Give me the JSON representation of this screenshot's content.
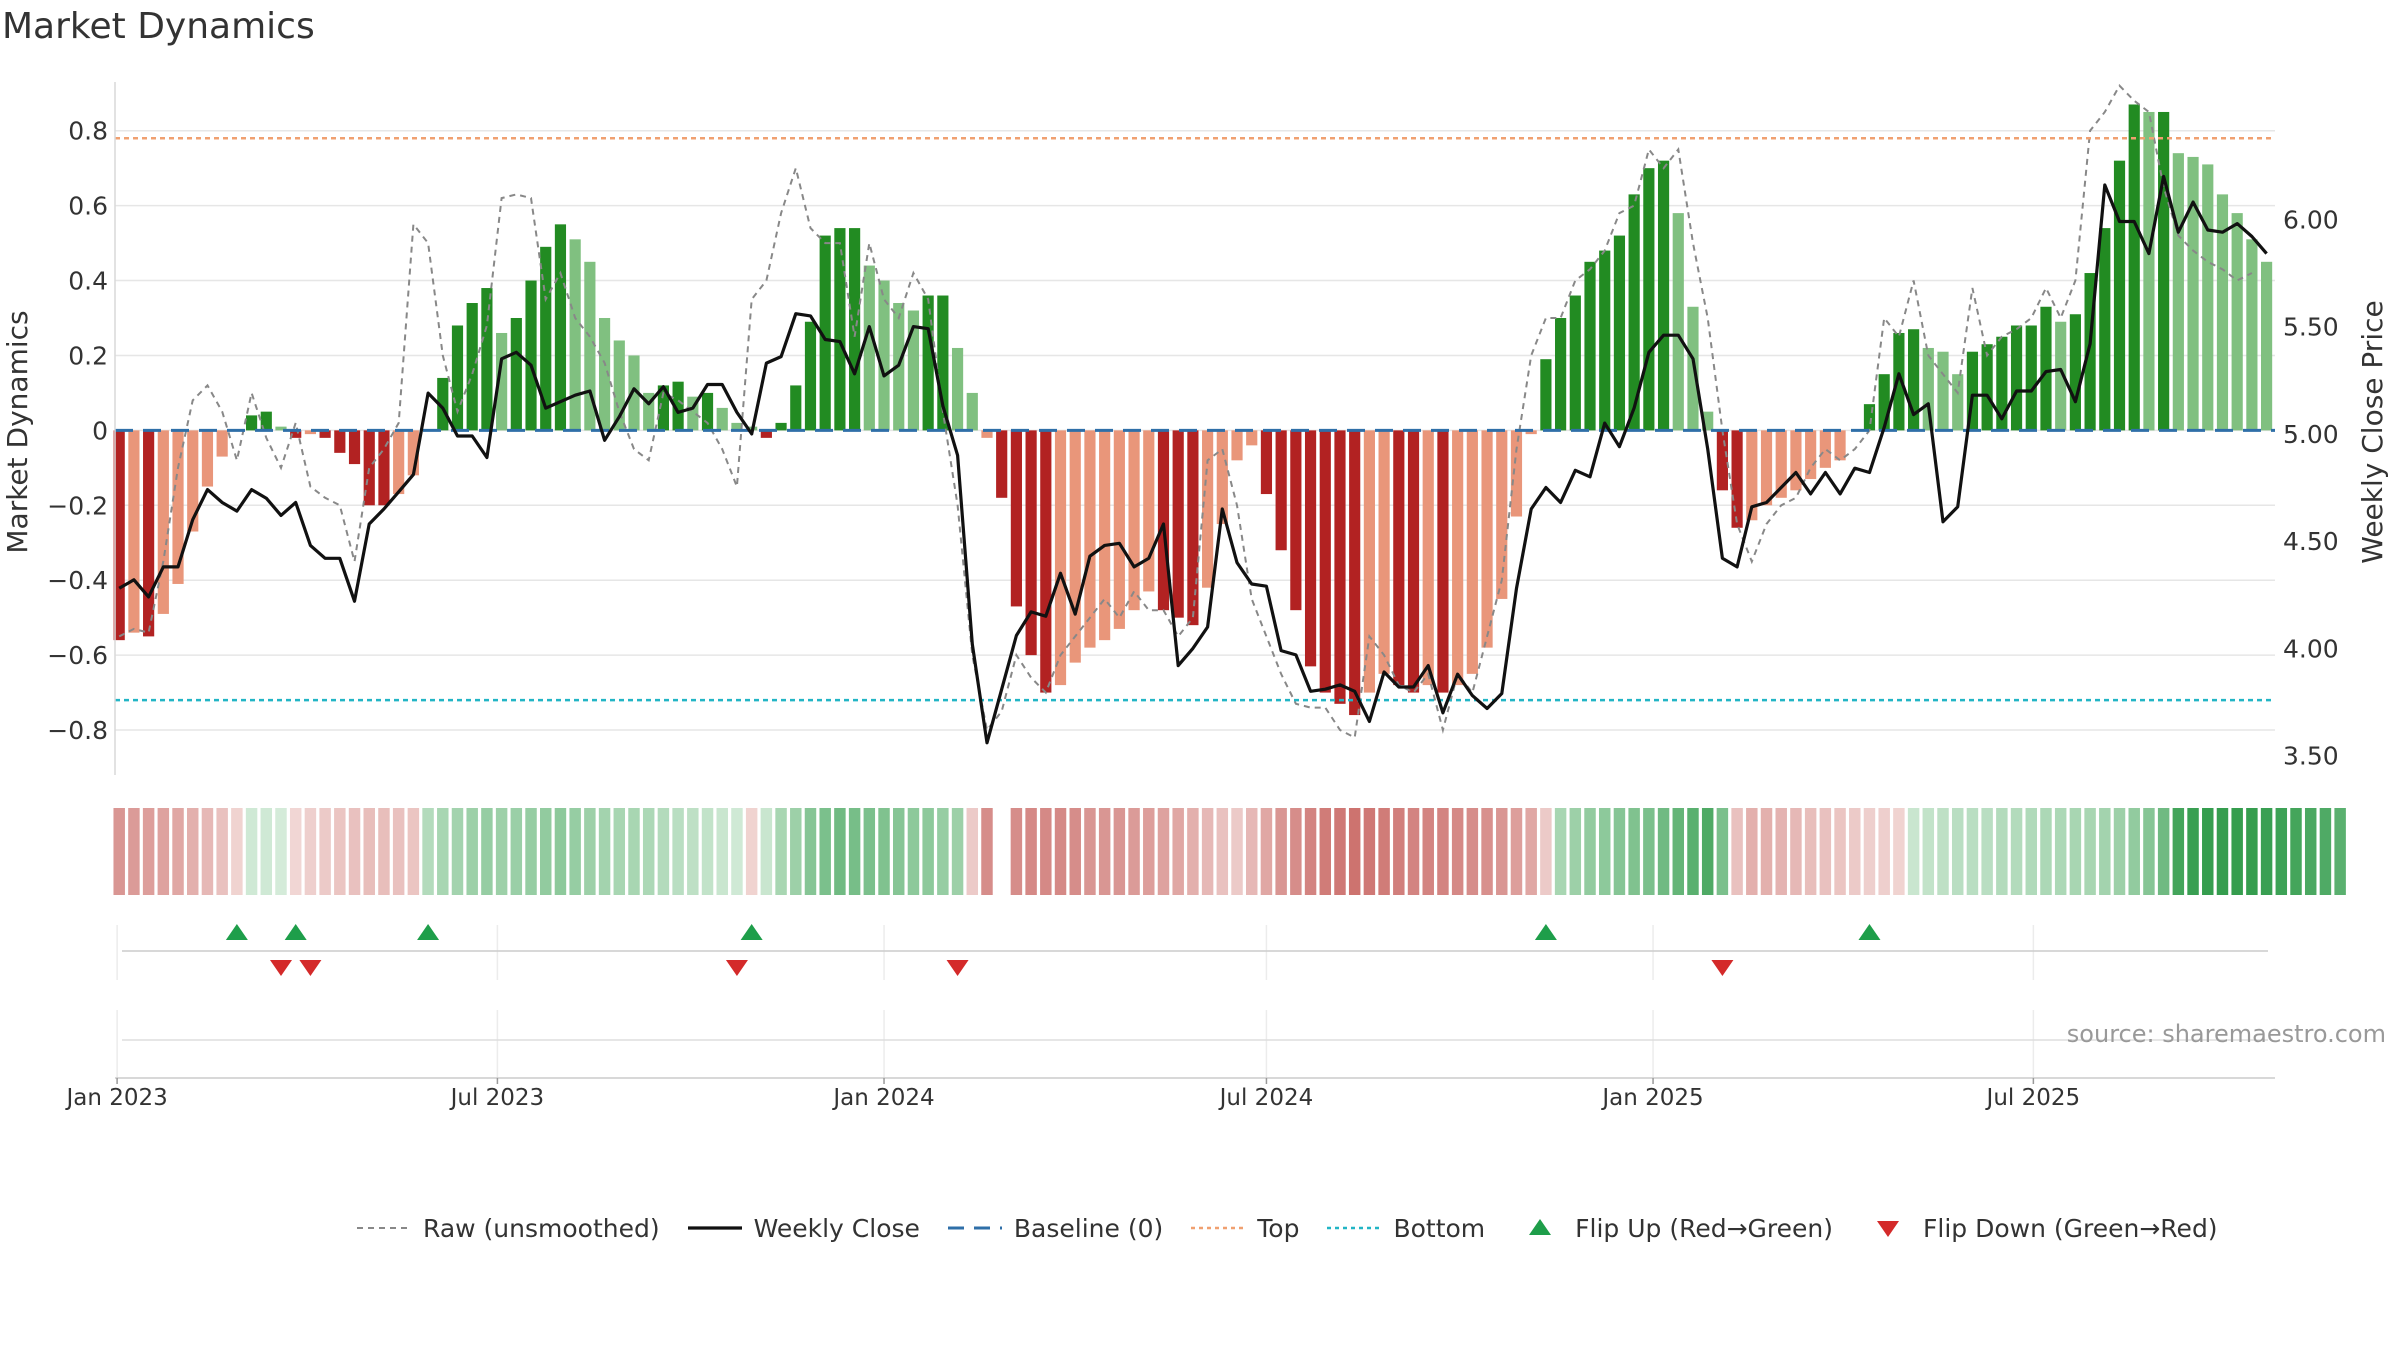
{
  "title": "Market Dynamics",
  "source_note": "source: sharemaestro.com",
  "legend": [
    {
      "key": "raw",
      "label": "Raw (unsmoothed)",
      "color": "#888888",
      "style": "dashed-line"
    },
    {
      "key": "close",
      "label": "Weekly Close",
      "color": "#111111",
      "style": "solid-line"
    },
    {
      "key": "baseline",
      "label": "Baseline (0)",
      "color": "#2f6fa8",
      "style": "long-dash-line"
    },
    {
      "key": "top",
      "label": "Top",
      "color": "#f0a070",
      "style": "dotted-line"
    },
    {
      "key": "bottom",
      "label": "Bottom",
      "color": "#22b5c5",
      "style": "dotted-line"
    },
    {
      "key": "flip_up",
      "label": "Flip Up (Red→Green)",
      "color": "#1e9e4a",
      "style": "triangle-up"
    },
    {
      "key": "flip_down",
      "label": "Flip Down (Green→Red)",
      "color": "#d42a2a",
      "style": "triangle-down"
    }
  ],
  "chart_data": {
    "type": "bar",
    "x_start_date": "2023-01-02",
    "x_step_days": 7,
    "x_tick_labels": [
      "Jan 2023",
      "Jul 2023",
      "Jan 2024",
      "Jul 2024",
      "Jan 2025",
      "Jul 2025"
    ],
    "x_tick_dates": [
      "2023-01-01",
      "2023-07-01",
      "2024-01-01",
      "2024-07-01",
      "2025-01-01",
      "2025-07-01"
    ],
    "ylabel": "Market Dynamics",
    "ylim": [
      -0.92,
      0.93
    ],
    "y_ticks": [
      -0.8,
      -0.6,
      -0.4,
      -0.2,
      0,
      0.2,
      0.4,
      0.6,
      0.8
    ],
    "y2label": "Weekly Close Price",
    "y2lim": [
      3.41,
      6.64
    ],
    "y2_ticks": [
      3.5,
      4.0,
      4.5,
      5.0,
      5.5,
      6.0
    ],
    "top_line": 0.78,
    "bottom_line": -0.72,
    "baseline": 0,
    "grid": true,
    "legend_position": "bottom",
    "colors": {
      "strong_green": "#228b22",
      "weak_green": "#80c080",
      "strong_red": "#b22222",
      "weak_red": "#e9967a"
    },
    "dynamics": [
      -0.56,
      -0.54,
      -0.55,
      -0.49,
      -0.41,
      -0.27,
      -0.15,
      -0.07,
      0.0,
      0.04,
      0.05,
      0.01,
      -0.02,
      -0.01,
      -0.02,
      -0.06,
      -0.09,
      -0.2,
      -0.2,
      -0.17,
      -0.12,
      0.0,
      0.14,
      0.28,
      0.34,
      0.38,
      0.26,
      0.3,
      0.4,
      0.49,
      0.55,
      0.51,
      0.45,
      0.3,
      0.24,
      0.2,
      0.1,
      0.12,
      0.13,
      0.09,
      0.1,
      0.06,
      0.02,
      0.01,
      -0.02,
      0.02,
      0.12,
      0.29,
      0.52,
      0.54,
      0.54,
      0.44,
      0.4,
      0.34,
      0.32,
      0.36,
      0.36,
      0.22,
      0.1,
      -0.02,
      -0.18,
      -0.47,
      -0.6,
      -0.7,
      -0.68,
      -0.62,
      -0.58,
      -0.56,
      -0.53,
      -0.48,
      -0.43,
      -0.48,
      -0.5,
      -0.52,
      -0.42,
      -0.25,
      -0.08,
      -0.04,
      -0.17,
      -0.32,
      -0.48,
      -0.63,
      -0.7,
      -0.73,
      -0.76,
      -0.7,
      -0.65,
      -0.68,
      -0.7,
      -0.68,
      -0.7,
      -0.68,
      -0.65,
      -0.58,
      -0.45,
      -0.23,
      -0.01,
      0.19,
      0.3,
      0.36,
      0.45,
      0.48,
      0.52,
      0.63,
      0.7,
      0.72,
      0.58,
      0.33,
      0.05,
      -0.16,
      -0.26,
      -0.24,
      -0.2,
      -0.18,
      -0.16,
      -0.13,
      -0.1,
      -0.08,
      0.0,
      0.07,
      0.15,
      0.26,
      0.27,
      0.22,
      0.21,
      0.15,
      0.21,
      0.23,
      0.25,
      0.28,
      0.28,
      0.33,
      0.29,
      0.31,
      0.42,
      0.54,
      0.72,
      0.87,
      0.85,
      0.85,
      0.74,
      0.73,
      0.71,
      0.63,
      0.58,
      0.51,
      0.45
    ],
    "raw": [
      -0.55,
      -0.53,
      -0.54,
      -0.35,
      -0.1,
      0.08,
      0.12,
      0.05,
      -0.08,
      0.1,
      -0.02,
      -0.1,
      0.02,
      -0.15,
      -0.18,
      -0.2,
      -0.35,
      -0.1,
      -0.05,
      0.02,
      0.55,
      0.5,
      0.2,
      0.05,
      0.15,
      0.28,
      0.62,
      0.63,
      0.62,
      0.35,
      0.42,
      0.3,
      0.25,
      0.18,
      0.05,
      -0.05,
      -0.08,
      0.1,
      0.08,
      0.05,
      0.02,
      -0.05,
      -0.15,
      0.35,
      0.4,
      0.58,
      0.7,
      0.54,
      0.5,
      0.5,
      0.25,
      0.5,
      0.35,
      0.3,
      0.42,
      0.35,
      0.05,
      -0.2,
      -0.6,
      -0.8,
      -0.75,
      -0.6,
      -0.66,
      -0.7,
      -0.6,
      -0.55,
      -0.5,
      -0.45,
      -0.5,
      -0.43,
      -0.48,
      -0.48,
      -0.55,
      -0.5,
      -0.08,
      -0.05,
      -0.2,
      -0.45,
      -0.55,
      -0.65,
      -0.73,
      -0.74,
      -0.74,
      -0.8,
      -0.82,
      -0.55,
      -0.6,
      -0.68,
      -0.7,
      -0.65,
      -0.8,
      -0.65,
      -0.7,
      -0.55,
      -0.4,
      -0.05,
      0.2,
      0.3,
      0.3,
      0.4,
      0.43,
      0.48,
      0.58,
      0.6,
      0.75,
      0.7,
      0.75,
      0.5,
      0.3,
      0.0,
      -0.25,
      -0.35,
      -0.25,
      -0.2,
      -0.18,
      -0.1,
      -0.05,
      -0.08,
      -0.05,
      0.0,
      0.3,
      0.25,
      0.4,
      0.2,
      0.15,
      0.1,
      0.38,
      0.2,
      0.25,
      0.27,
      0.3,
      0.38,
      0.3,
      0.4,
      0.8,
      0.85,
      0.92,
      0.88,
      0.85,
      0.65,
      0.52,
      0.48,
      0.45,
      0.43,
      0.4,
      0.42
    ],
    "close": [
      4.28,
      4.32,
      4.24,
      4.38,
      4.38,
      4.6,
      4.74,
      4.68,
      4.64,
      4.74,
      4.7,
      4.62,
      4.68,
      4.48,
      4.42,
      4.42,
      4.22,
      4.58,
      4.65,
      4.73,
      4.81,
      5.19,
      5.12,
      4.99,
      4.99,
      4.89,
      5.35,
      5.38,
      5.32,
      5.12,
      5.15,
      5.18,
      5.2,
      4.97,
      5.08,
      5.21,
      5.14,
      5.22,
      5.1,
      5.12,
      5.23,
      5.23,
      5.1,
      5.0,
      5.33,
      5.36,
      5.56,
      5.55,
      5.44,
      5.43,
      5.28,
      5.5,
      5.27,
      5.32,
      5.5,
      5.49,
      5.13,
      4.9,
      4.02,
      3.56,
      3.81,
      4.06,
      4.17,
      4.15,
      4.35,
      4.16,
      4.43,
      4.48,
      4.49,
      4.38,
      4.42,
      4.58,
      3.92,
      4.0,
      4.1,
      4.65,
      4.4,
      4.3,
      4.29,
      3.99,
      3.97,
      3.8,
      3.81,
      3.83,
      3.8,
      3.66,
      3.89,
      3.82,
      3.82,
      3.92,
      3.7,
      3.88,
      3.78,
      3.72,
      3.79,
      4.28,
      4.65,
      4.75,
      4.68,
      4.83,
      4.8,
      5.05,
      4.94,
      5.12,
      5.38,
      5.46,
      5.46,
      5.35,
      4.93,
      4.42,
      4.38,
      4.66,
      4.68,
      4.75,
      4.82,
      4.72,
      4.82,
      4.72,
      4.84,
      4.82,
      5.03,
      5.28,
      5.09,
      5.14,
      4.59,
      4.66,
      5.18,
      5.18,
      5.07,
      5.2,
      5.2,
      5.29,
      5.3,
      5.15,
      5.42,
      6.16,
      5.99,
      5.99,
      5.84,
      6.2,
      5.94,
      6.08,
      5.95,
      5.94,
      5.98,
      5.92,
      5.84
    ],
    "color_strip": [
      -0.45,
      -0.42,
      -0.4,
      -0.38,
      -0.35,
      -0.3,
      -0.25,
      -0.2,
      -0.1,
      0.12,
      0.12,
      0.1,
      -0.08,
      -0.12,
      -0.15,
      -0.18,
      -0.2,
      -0.22,
      -0.22,
      -0.2,
      -0.18,
      0.25,
      0.3,
      0.32,
      0.35,
      0.38,
      0.35,
      0.36,
      0.38,
      0.4,
      0.42,
      0.38,
      0.35,
      0.32,
      0.3,
      0.3,
      0.28,
      0.25,
      0.22,
      0.2,
      0.18,
      0.15,
      0.12,
      -0.1,
      0.15,
      0.3,
      0.35,
      0.45,
      0.5,
      0.55,
      0.52,
      0.5,
      0.48,
      0.45,
      0.42,
      0.42,
      0.38,
      0.35,
      -0.15,
      -0.5,
      null,
      -0.5,
      -0.52,
      -0.52,
      -0.52,
      -0.5,
      -0.45,
      -0.45,
      -0.45,
      -0.42,
      -0.4,
      -0.38,
      -0.35,
      -0.3,
      -0.25,
      -0.2,
      -0.15,
      -0.25,
      -0.35,
      -0.45,
      -0.5,
      -0.55,
      -0.6,
      -0.62,
      -0.65,
      -0.62,
      -0.6,
      -0.58,
      -0.55,
      -0.55,
      -0.55,
      -0.52,
      -0.5,
      -0.48,
      -0.45,
      -0.4,
      -0.35,
      -0.15,
      0.3,
      0.35,
      0.4,
      0.42,
      0.45,
      0.48,
      0.5,
      0.55,
      0.6,
      0.65,
      0.7,
      0.5,
      -0.2,
      -0.3,
      -0.3,
      -0.28,
      -0.25,
      -0.22,
      -0.2,
      -0.18,
      -0.15,
      -0.12,
      -0.12,
      -0.1,
      0.15,
      0.18,
      0.2,
      0.22,
      0.22,
      0.22,
      0.25,
      0.25,
      0.26,
      0.28,
      0.28,
      0.3,
      0.3,
      0.32,
      0.35,
      0.4,
      0.45,
      0.55,
      0.75,
      0.8,
      0.82,
      0.82,
      0.82,
      0.82,
      0.8,
      0.78,
      0.75,
      0.72,
      0.7,
      0.65
    ],
    "flip_up_weeks": [
      8,
      12,
      21,
      43,
      97,
      119
    ],
    "flip_down_weeks": [
      11,
      13,
      42,
      57,
      109
    ]
  }
}
